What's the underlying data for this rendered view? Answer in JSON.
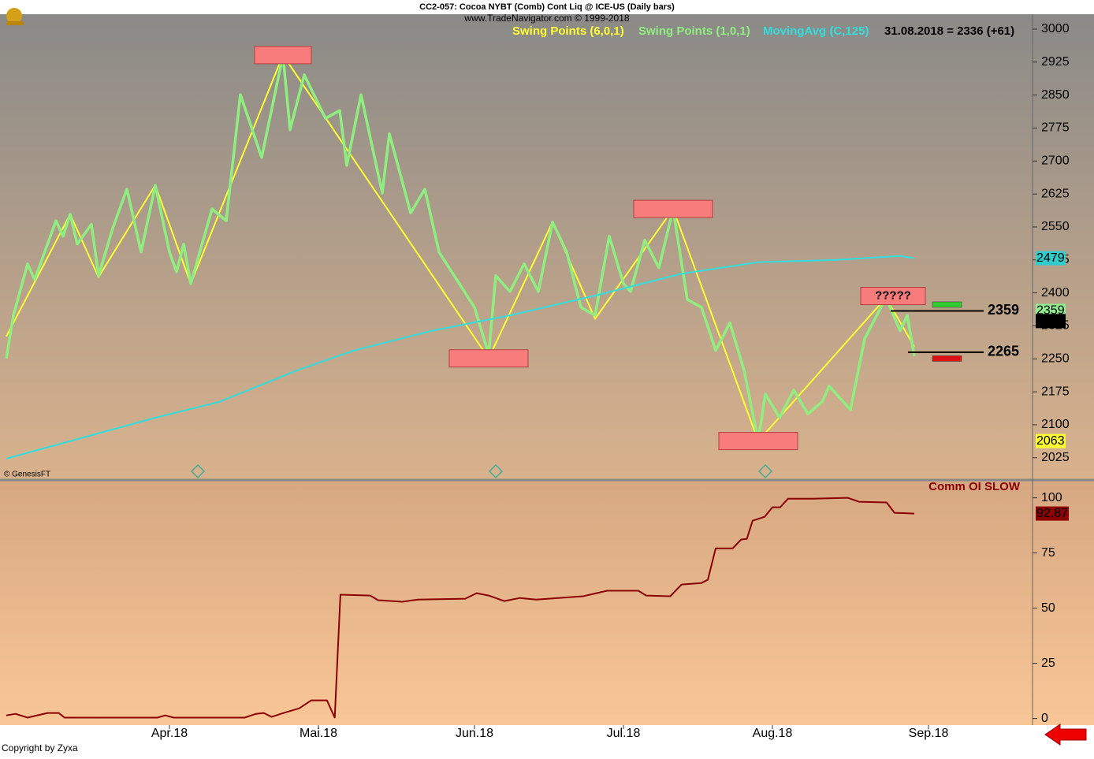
{
  "header": {
    "title": "CC2-057:  Cocoa NYBT (Comb) Cont Liq @ ICE-US  (Daily bars)",
    "subtitle": "www.TradeNavigator.com © 1999-2018"
  },
  "copyright": "Copyright by Zyxa",
  "chart_data": [
    {
      "type": "line",
      "status": "31.08.2018 = 2336 (+61)",
      "watermark": "© GenesisFT",
      "xlim": [
        0,
        145
      ],
      "ylim": [
        1978,
        3034
      ],
      "yticks": [
        2025,
        2100,
        2175,
        2250,
        2325,
        2400,
        2475,
        2550,
        2625,
        2700,
        2775,
        2850,
        2925,
        3000
      ],
      "series": [
        {
          "name": "Swing Points (6,0,1)",
          "color": "#ffff33",
          "x": [
            0,
            9,
            13,
            21,
            26,
            39,
            68,
            77,
            83,
            94,
            106,
            124,
            128
          ],
          "values": [
            2301,
            2579,
            2436,
            2645,
            2421,
            2941,
            2251,
            2561,
            2341,
            2591,
            2063,
            2389,
            2278
          ]
        },
        {
          "name": "Swing Points (1,0,1)",
          "color": "#90ee80",
          "x": [
            0,
            1,
            3,
            4,
            7,
            8,
            9,
            10,
            12,
            13,
            15,
            17,
            19,
            21,
            23,
            24,
            25,
            26,
            29,
            31,
            33,
            36,
            39,
            40,
            42,
            45,
            47,
            48,
            50,
            53,
            54,
            57,
            59,
            61,
            66,
            68,
            69,
            71,
            73,
            75,
            77,
            79,
            81,
            83,
            85,
            87,
            88,
            90,
            92,
            94,
            96,
            98,
            100,
            102,
            104,
            106,
            107,
            109,
            111,
            113,
            115,
            116,
            119,
            121,
            124,
            126,
            127,
            128
          ],
          "values": [
            2251,
            2349,
            2466,
            2430,
            2564,
            2529,
            2579,
            2511,
            2556,
            2439,
            2547,
            2636,
            2493,
            2645,
            2493,
            2448,
            2511,
            2421,
            2591,
            2564,
            2851,
            2708,
            2941,
            2771,
            2896,
            2797,
            2815,
            2690,
            2851,
            2627,
            2762,
            2582,
            2636,
            2493,
            2367,
            2260,
            2439,
            2403,
            2466,
            2403,
            2561,
            2493,
            2367,
            2349,
            2529,
            2421,
            2403,
            2520,
            2457,
            2591,
            2385,
            2367,
            2269,
            2332,
            2224,
            2063,
            2170,
            2116,
            2179,
            2125,
            2152,
            2188,
            2134,
            2296,
            2389,
            2314,
            2349,
            2256
          ]
        },
        {
          "name": "MovingAvg (C,125)",
          "color": "#33dddd",
          "x": [
            0,
            21,
            30,
            41,
            49,
            60,
            71,
            83,
            95,
            106,
            117,
            126,
            128
          ],
          "values": [
            2023,
            2116,
            2152,
            2224,
            2269,
            2314,
            2349,
            2394,
            2443,
            2470,
            2475,
            2484,
            2479
          ]
        }
      ],
      "annotations": [
        {
          "x": 39,
          "y": 2941
        },
        {
          "x": 68,
          "y": 2251
        },
        {
          "x": 94,
          "y": 2591
        },
        {
          "x": 106,
          "y": 2063
        },
        {
          "x": 125,
          "y": 2393,
          "text": "?????"
        }
      ],
      "levels": [
        2359,
        2265
      ],
      "badges": [
        {
          "value": 2479,
          "color": "#33cccc"
        },
        {
          "value": 2359,
          "color": "#90ee90"
        },
        {
          "value": 2336,
          "color": "#000000"
        },
        {
          "value": 2063,
          "color": "#ffff33"
        }
      ]
    },
    {
      "type": "line",
      "title": "Comm OI SLOW",
      "xlim": [
        0,
        145
      ],
      "ylim": [
        -3,
        107
      ],
      "yticks": [
        0,
        25,
        50,
        75,
        100
      ],
      "xticks": [
        {
          "value": 23,
          "label": "Apr.18"
        },
        {
          "value": 44,
          "label": "Mai.18"
        },
        {
          "value": 66,
          "label": "Jun.18"
        },
        {
          "value": 87,
          "label": "Jul.18"
        },
        {
          "value": 108,
          "label": "Aug.18"
        },
        {
          "value": 130,
          "label": "Sep.18"
        }
      ],
      "series": [
        {
          "color": "#8b0000",
          "x": [
            0,
            1.3,
            3,
            5.8,
            7.4,
            8.2,
            21.3,
            22.4,
            23.6,
            33.6,
            35.2,
            36.3,
            37.4,
            39.1,
            41.3,
            43,
            45.2,
            46.3,
            47.1,
            51.3,
            52.4,
            55.8,
            58,
            64.7,
            66.3,
            68,
            70.2,
            72.4,
            74.7,
            81.3,
            84.7,
            89.1,
            90.2,
            93.6,
            95.2,
            98,
            98.9,
            100,
            102.4,
            103.6,
            104.4,
            105.2,
            106.9,
            108,
            109.1,
            110.2,
            113.6,
            118.6,
            120.2,
            124.1,
            125.2,
            128
          ],
          "values": [
            1.4,
            2.1,
            0.4,
            2.5,
            2.5,
            0.4,
            0.4,
            1.4,
            0.4,
            0.4,
            2.1,
            2.5,
            0.7,
            2.5,
            4.6,
            8.2,
            8.2,
            0.4,
            56.1,
            55.7,
            53.6,
            52.9,
            53.9,
            54.3,
            56.8,
            55.7,
            53.2,
            54.6,
            53.9,
            55.4,
            57.9,
            57.9,
            55.7,
            55.4,
            60.7,
            61.4,
            62.9,
            77.1,
            77.1,
            81.1,
            81.4,
            89.6,
            91.4,
            95.7,
            95.7,
            99.6,
            99.6,
            100,
            98.2,
            97.9,
            93.2,
            92.87
          ]
        }
      ],
      "badge": 92.87
    }
  ]
}
